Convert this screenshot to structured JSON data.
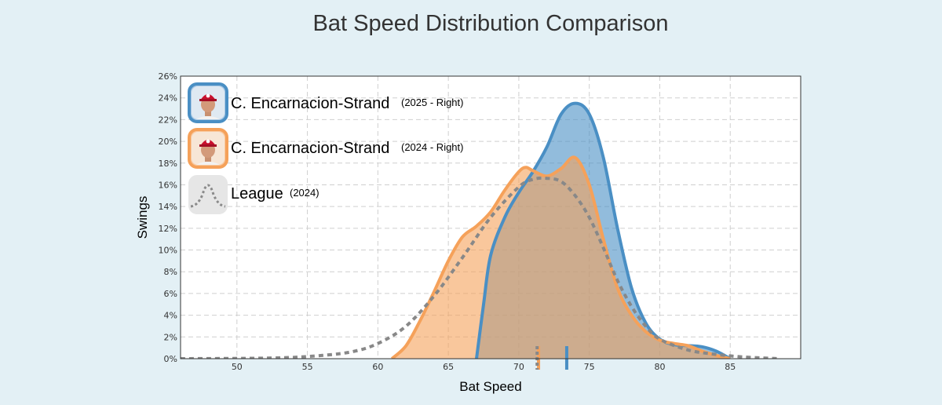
{
  "chart_data": {
    "type": "area",
    "title": "Bat Speed Distribution Comparison",
    "xlabel": "Bat Speed",
    "ylabel": "Swings",
    "xlim": [
      46,
      90
    ],
    "ylim": [
      0,
      26
    ],
    "x_ticks": [
      50,
      55,
      60,
      65,
      70,
      75,
      80,
      85
    ],
    "y_ticks": [
      "0%",
      "2%",
      "4%",
      "6%",
      "8%",
      "10%",
      "12%",
      "14%",
      "16%",
      "18%",
      "20%",
      "22%",
      "24%",
      "26%"
    ],
    "grid": true,
    "legend_position": "top-left",
    "series": [
      {
        "name": "C. Encarnacion-Strand",
        "detail": "(2025 - Right)",
        "color": "#4a8fc4",
        "style": "filled",
        "mean_marker": 73.4,
        "points": [
          [
            67,
            0
          ],
          [
            67.5,
            5
          ],
          [
            68,
            9.5
          ],
          [
            69,
            13
          ],
          [
            70,
            15.3
          ],
          [
            71,
            17.2
          ],
          [
            72,
            19.5
          ],
          [
            73,
            22.5
          ],
          [
            74,
            23.5
          ],
          [
            75,
            22.5
          ],
          [
            76,
            18.5
          ],
          [
            77,
            12
          ],
          [
            78,
            6.5
          ],
          [
            79,
            3.3
          ],
          [
            80,
            1.8
          ],
          [
            81,
            1.3
          ],
          [
            82,
            1.2
          ],
          [
            83,
            1.1
          ],
          [
            84,
            0.7
          ],
          [
            85,
            0
          ]
        ]
      },
      {
        "name": "C. Encarnacion-Strand",
        "detail": "(2024 - Right)",
        "color": "#f5a15a",
        "style": "filled",
        "mean_marker": 71.4,
        "points": [
          [
            61,
            0
          ],
          [
            62,
            1.2
          ],
          [
            63,
            3.5
          ],
          [
            64,
            6.2
          ],
          [
            65,
            9
          ],
          [
            66,
            11.2
          ],
          [
            67,
            12.2
          ],
          [
            68,
            13.5
          ],
          [
            69,
            15.5
          ],
          [
            70,
            17.2
          ],
          [
            70.5,
            17.6
          ],
          [
            71,
            17.3
          ],
          [
            72,
            16.8
          ],
          [
            73,
            17.5
          ],
          [
            74,
            18.5
          ],
          [
            75,
            16
          ],
          [
            76,
            11
          ],
          [
            77,
            6.5
          ],
          [
            78,
            4
          ],
          [
            79,
            2.5
          ],
          [
            80,
            1.7
          ],
          [
            81,
            1.4
          ],
          [
            82,
            1.2
          ],
          [
            83,
            0.7
          ],
          [
            84,
            0.3
          ],
          [
            85,
            0
          ]
        ]
      },
      {
        "name": "League",
        "detail": "(2024)",
        "color": "#888888",
        "style": "dotted",
        "mean_marker": 71.3,
        "points": [
          [
            46,
            0
          ],
          [
            52,
            0.05
          ],
          [
            55,
            0.2
          ],
          [
            58,
            0.6
          ],
          [
            60,
            1.4
          ],
          [
            62,
            3
          ],
          [
            64,
            5.8
          ],
          [
            66,
            9.3
          ],
          [
            68,
            13
          ],
          [
            70,
            15.8
          ],
          [
            71,
            16.5
          ],
          [
            72,
            16.6
          ],
          [
            73,
            16.3
          ],
          [
            74,
            15
          ],
          [
            75,
            13
          ],
          [
            76,
            10.2
          ],
          [
            77,
            7.2
          ],
          [
            78,
            4.8
          ],
          [
            79,
            3
          ],
          [
            80,
            1.8
          ],
          [
            82,
            0.8
          ],
          [
            84,
            0.4
          ],
          [
            86,
            0.15
          ],
          [
            88,
            0.03
          ],
          [
            88.5,
            0
          ]
        ]
      }
    ]
  }
}
